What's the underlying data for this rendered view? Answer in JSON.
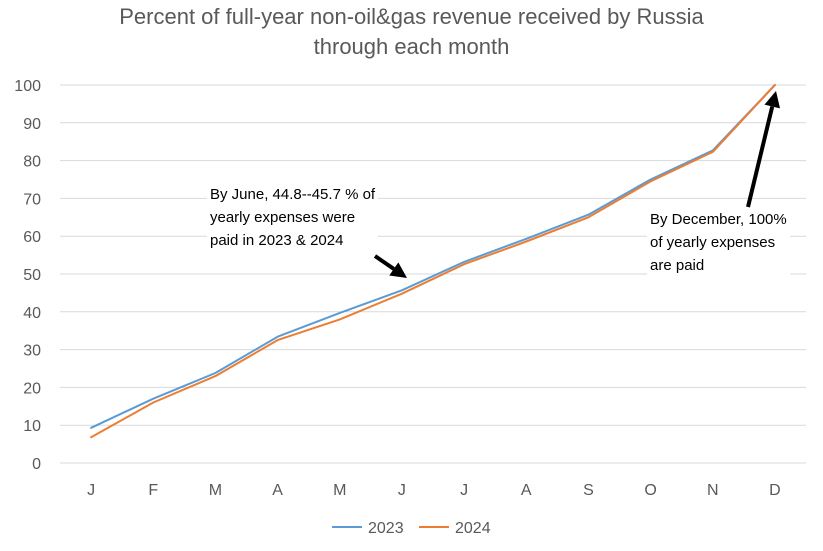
{
  "chart_data": {
    "type": "line",
    "title_lines": [
      "Percent of full-year non-oil&gas revenue received by Russia",
      "through each month"
    ],
    "categories": [
      "J",
      "F",
      "M",
      "A",
      "M",
      "J",
      "J",
      "A",
      "S",
      "O",
      "N",
      "D"
    ],
    "series": [
      {
        "name": "2023",
        "color": "#5B9BD5",
        "values": [
          9.3,
          17.0,
          23.8,
          33.4,
          39.7,
          45.7,
          53.2,
          59.3,
          65.7,
          75.0,
          82.7,
          100
        ]
      },
      {
        "name": "2024",
        "color": "#ED7D31",
        "values": [
          6.8,
          16.0,
          23.0,
          32.5,
          38.0,
          44.8,
          52.6,
          58.6,
          65.0,
          74.5,
          82.3,
          100
        ]
      }
    ],
    "ylim": [
      0,
      100
    ],
    "yticks": [
      0,
      10,
      20,
      30,
      40,
      50,
      60,
      70,
      80,
      90,
      100
    ],
    "grid": true,
    "legend_position": "bottom",
    "annotations": [
      {
        "lines": [
          "By June, 44.8--45.7 % of",
          "yearly expenses were",
          "paid in 2023 & 2024"
        ]
      },
      {
        "lines": [
          "By December, 100%",
          "of yearly expenses",
          "are paid"
        ]
      }
    ]
  }
}
